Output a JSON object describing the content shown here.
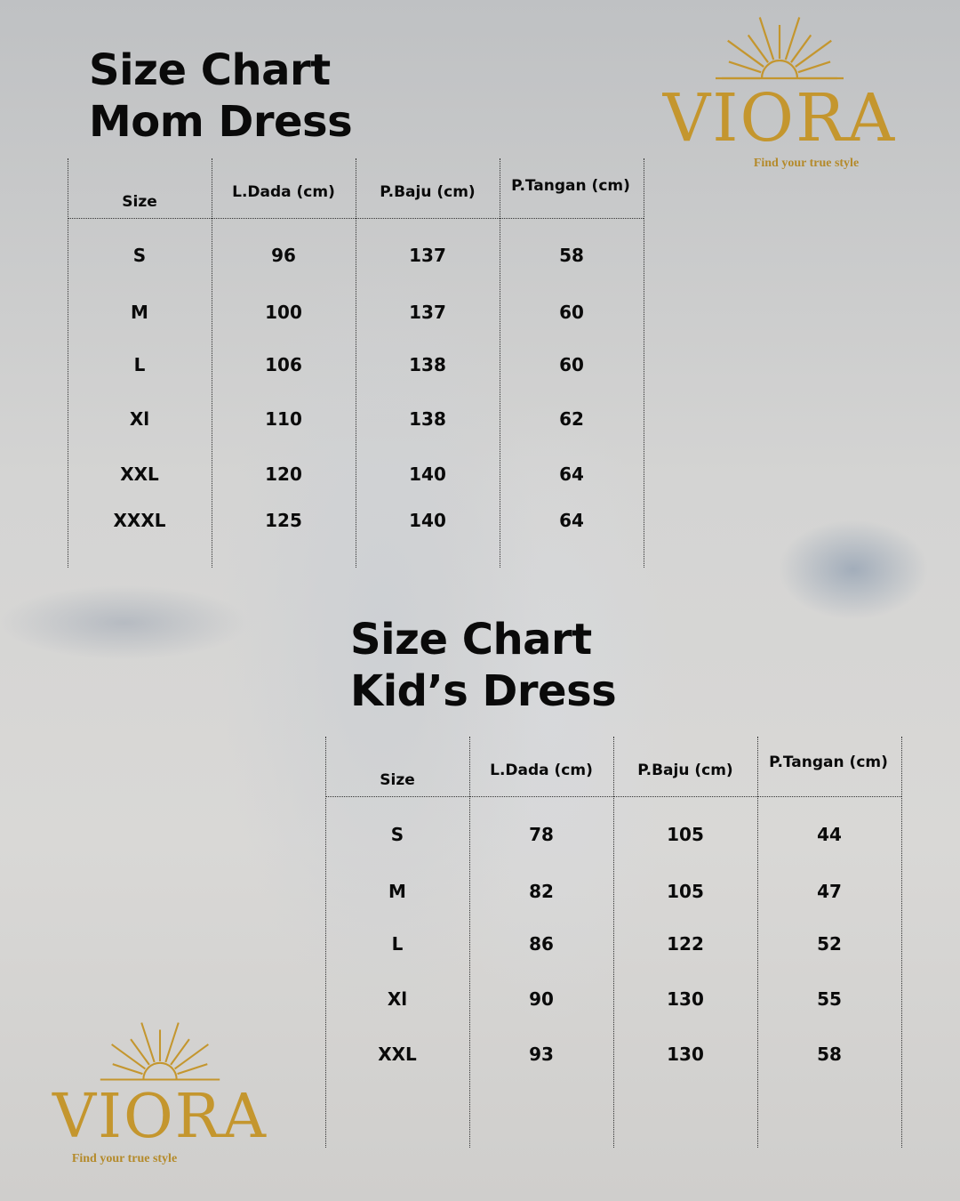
{
  "brand": {
    "name": "VIORA",
    "tagline": "Find your true style",
    "color": "#c4962e"
  },
  "mom": {
    "title_line1": "Size Chart",
    "title_line2": "Mom Dress",
    "headers": [
      "Size",
      "L.Dada (cm)",
      "P.Baju (cm)",
      "P.Tangan (cm)"
    ],
    "rows": [
      [
        "S",
        "96",
        "137",
        "58"
      ],
      [
        "M",
        "100",
        "137",
        "60"
      ],
      [
        "L",
        "106",
        "138",
        "60"
      ],
      [
        "Xl",
        "110",
        "138",
        "62"
      ],
      [
        "XXL",
        "120",
        "140",
        "64"
      ],
      [
        "XXXL",
        "125",
        "140",
        "64"
      ]
    ]
  },
  "kid": {
    "title_line1": "Size Chart",
    "title_line2": "Kid’s Dress",
    "headers": [
      "Size",
      "L.Dada (cm)",
      "P.Baju (cm)",
      "P.Tangan (cm)"
    ],
    "rows": [
      [
        "S",
        "78",
        "105",
        "44"
      ],
      [
        "M",
        "82",
        "105",
        "47"
      ],
      [
        "L",
        "86",
        "122",
        "52"
      ],
      [
        "Xl",
        "90",
        "130",
        "55"
      ],
      [
        "XXL",
        "93",
        "130",
        "58"
      ]
    ]
  }
}
